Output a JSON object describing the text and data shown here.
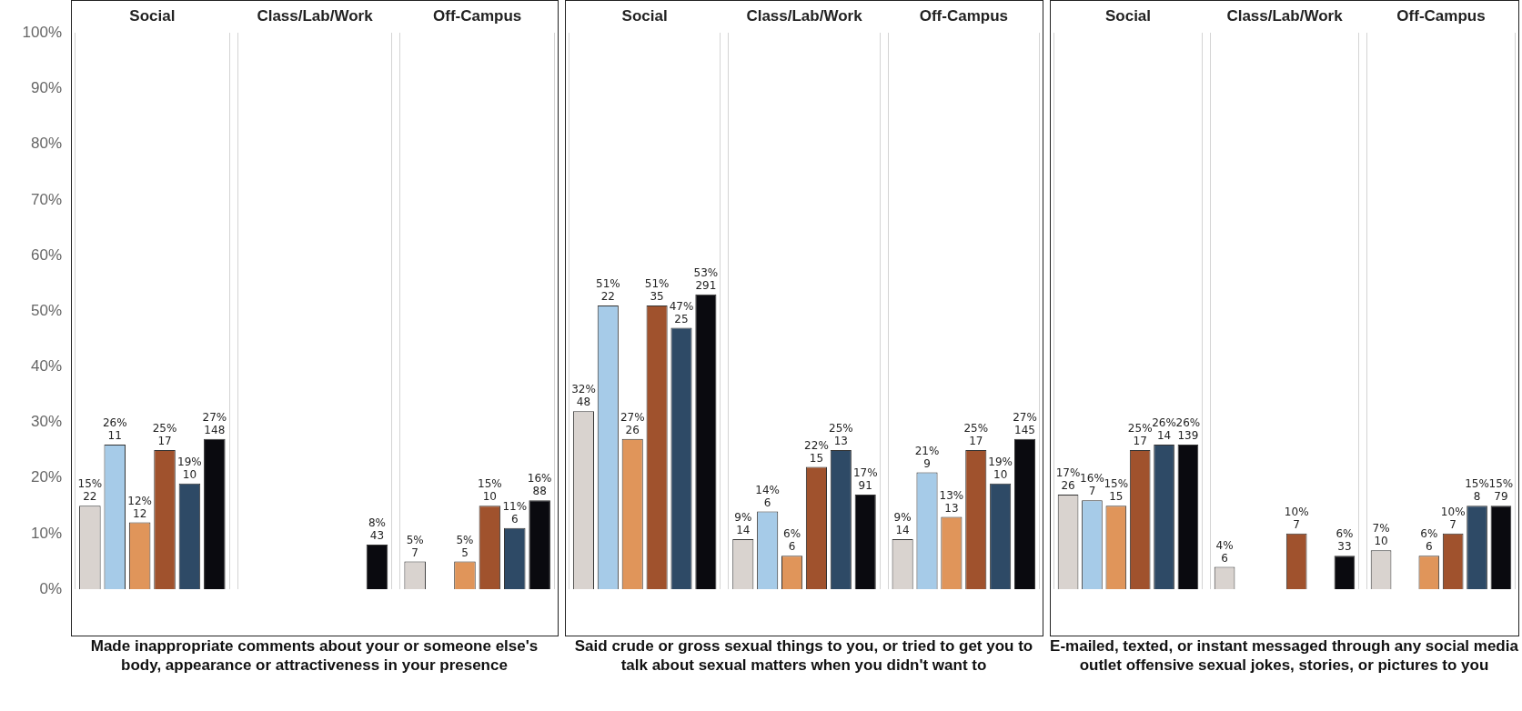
{
  "chart_data": [
    {
      "type": "bar",
      "xlabel": "Made inappropriate comments about your or someone else's body, appearance or attractiveness in your presence",
      "categories": [
        "Social",
        "Class/Lab/Work",
        "Off-Campus"
      ],
      "ylim": [
        0,
        100
      ],
      "yticks": [
        {
          "value": 0,
          "label": "0%"
        },
        {
          "value": 10,
          "label": "10%"
        },
        {
          "value": 20,
          "label": "20%"
        },
        {
          "value": 30,
          "label": "30%"
        },
        {
          "value": 40,
          "label": "40%"
        },
        {
          "value": 50,
          "label": "50%"
        },
        {
          "value": 60,
          "label": "60%"
        },
        {
          "value": 70,
          "label": "70%"
        },
        {
          "value": 80,
          "label": "80%"
        },
        {
          "value": 90,
          "label": "90%"
        },
        {
          "value": 100,
          "label": "100%"
        }
      ],
      "series": [
        {
          "color": "#d9d3cf",
          "values": [
            15,
            null,
            5
          ],
          "value_labels": [
            "15%\n22",
            null,
            "5%\n7"
          ]
        },
        {
          "color": "#a6cbe8",
          "values": [
            26,
            null,
            null
          ],
          "value_labels": [
            "26%\n11",
            null,
            null
          ]
        },
        {
          "color": "#e0955a",
          "values": [
            12,
            null,
            5
          ],
          "value_labels": [
            "12%\n12",
            null,
            "5%\n5"
          ]
        },
        {
          "color": "#a0522d",
          "values": [
            25,
            null,
            15
          ],
          "value_labels": [
            "25%\n17",
            null,
            "15%\n10"
          ]
        },
        {
          "color": "#2e4a66",
          "values": [
            19,
            null,
            11
          ],
          "value_labels": [
            "19%\n10",
            null,
            "11%\n6"
          ]
        },
        {
          "color": "#0a0a0f",
          "values": [
            27,
            8,
            16
          ],
          "value_labels": [
            "27%\n148",
            "8%\n43",
            "16%\n88"
          ]
        }
      ]
    },
    {
      "type": "bar",
      "xlabel": "Said crude or gross sexual things to you, or tried to get you to talk about sexual matters when you didn't want to",
      "categories": [
        "Social",
        "Class/Lab/Work",
        "Off-Campus"
      ],
      "ylim": [
        0,
        100
      ],
      "tick_labels": "x",
      "series": [
        {
          "color": "#d9d3cf",
          "values": [
            32,
            9,
            9
          ],
          "value_labels": [
            "32%\n48",
            "9%\n14",
            "9%\n14"
          ]
        },
        {
          "color": "#a6cbe8",
          "values": [
            51,
            14,
            21
          ],
          "value_labels": [
            "51%\n22",
            "14%\n6",
            "21%\n9"
          ]
        },
        {
          "color": "#e0955a",
          "values": [
            27,
            6,
            13
          ],
          "value_labels": [
            "27%\n26",
            "6%\n6",
            "13%\n13"
          ]
        },
        {
          "color": "#a0522d",
          "values": [
            51,
            22,
            25
          ],
          "value_labels": [
            "51%\n35",
            "22%\n15",
            "25%\n17"
          ]
        },
        {
          "color": "#2e4a66",
          "values": [
            47,
            25,
            19
          ],
          "value_labels": [
            "47%\n25",
            "25%\n13",
            "19%\n10"
          ]
        },
        {
          "color": "#0a0a0f",
          "values": [
            53,
            17,
            27
          ],
          "value_labels": [
            "53%\n291",
            "17%\n91",
            "27%\n145"
          ]
        }
      ]
    },
    {
      "type": "bar",
      "xlabel": "E-mailed, texted, or instant messaged through any social media outlet offensive sexual jokes, stories, or pictures to you",
      "categories": [
        "Social",
        "Class/Lab/Work",
        "Off-Campus"
      ],
      "ylim": [
        0,
        100
      ],
      "tick_labels": "x",
      "series": [
        {
          "color": "#d9d3cf",
          "values": [
            17,
            4,
            7
          ],
          "value_labels": [
            "17%\n26",
            "4%\n6",
            "7%\n10"
          ]
        },
        {
          "color": "#a6cbe8",
          "values": [
            16,
            null,
            null
          ],
          "value_labels": [
            "16%\n7",
            null,
            null
          ]
        },
        {
          "color": "#e0955a",
          "values": [
            15,
            null,
            6
          ],
          "value_labels": [
            "15%\n15",
            null,
            "6%\n6"
          ]
        },
        {
          "color": "#a0522d",
          "values": [
            25,
            10,
            10
          ],
          "value_labels": [
            "25%\n17",
            "10%\n7",
            "10%\n7"
          ]
        },
        {
          "color": "#2e4a66",
          "values": [
            26,
            null,
            15
          ],
          "value_labels": [
            "26%\n14",
            null,
            "15%\n8"
          ]
        },
        {
          "color": "#0a0a0f",
          "values": [
            26,
            6,
            15
          ],
          "value_labels": [
            "26%\n139",
            "6%\n33",
            "15%\n79"
          ]
        }
      ]
    }
  ]
}
